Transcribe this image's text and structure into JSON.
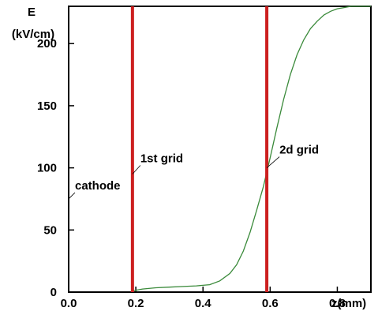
{
  "chart_data": {
    "type": "line",
    "ylabel_line1": "E",
    "ylabel_line2": "(kV/cm)",
    "xlabel": "z(mm)",
    "xlim": [
      0.0,
      0.9
    ],
    "ylim": [
      0,
      230
    ],
    "x_ticks": [
      {
        "value": 0.0,
        "label": "0.0"
      },
      {
        "value": 0.2,
        "label": "0.2"
      },
      {
        "value": 0.4,
        "label": "0.4"
      },
      {
        "value": 0.6,
        "label": "0.6"
      },
      {
        "value": 0.8,
        "label": "0.8"
      }
    ],
    "y_ticks": [
      {
        "value": 0,
        "label": "0"
      },
      {
        "value": 50,
        "label": "50"
      },
      {
        "value": 100,
        "label": "100"
      },
      {
        "value": 150,
        "label": "150"
      },
      {
        "value": 200,
        "label": "200"
      }
    ],
    "series": [
      {
        "color": "#3a8a3a",
        "x": [
          0.19,
          0.22,
          0.26,
          0.3,
          0.34,
          0.38,
          0.42,
          0.45,
          0.48,
          0.5,
          0.52,
          0.54,
          0.56,
          0.58,
          0.6,
          0.62,
          0.64,
          0.66,
          0.68,
          0.7,
          0.72,
          0.74,
          0.76,
          0.78,
          0.8,
          0.82,
          0.84,
          0.86,
          0.88,
          0.9
        ],
        "y": [
          1,
          2.5,
          3.5,
          4,
          4.5,
          5,
          6,
          9,
          15,
          22,
          33,
          48,
          66,
          85,
          108,
          132,
          155,
          175,
          191,
          203,
          212,
          218,
          223,
          226,
          228,
          229,
          230,
          230,
          230,
          230
        ]
      }
    ],
    "vertical_markers": [
      {
        "x": 0.19,
        "color": "#cc1f1f"
      },
      {
        "x": 0.59,
        "color": "#cc1f1f"
      }
    ],
    "annotations": [
      {
        "text": "cathode",
        "x": 0.0,
        "y": 75
      },
      {
        "text": "1st grid",
        "x": 0.19,
        "y": 95
      },
      {
        "text": "2d grid",
        "x": 0.59,
        "y": 100
      }
    ]
  }
}
